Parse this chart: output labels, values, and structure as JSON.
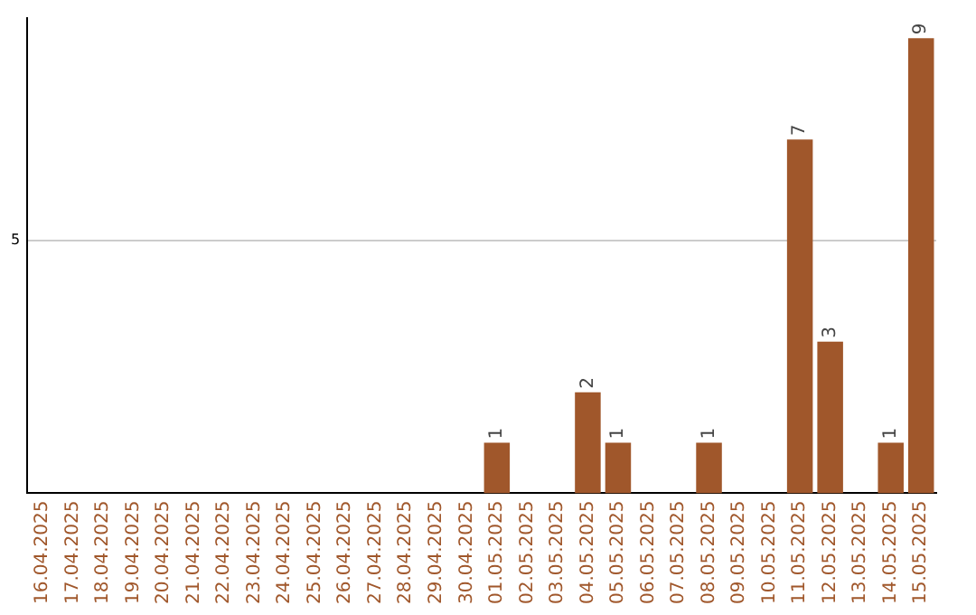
{
  "chart_data": {
    "type": "bar",
    "categories": [
      "16.04.2025",
      "17.04.2025",
      "18.04.2025",
      "19.04.2025",
      "20.04.2025",
      "21.04.2025",
      "22.04.2025",
      "23.04.2025",
      "24.04.2025",
      "25.04.2025",
      "26.04.2025",
      "27.04.2025",
      "28.04.2025",
      "29.04.2025",
      "30.04.2025",
      "01.05.2025",
      "02.05.2025",
      "03.05.2025",
      "04.05.2025",
      "05.05.2025",
      "06.05.2025",
      "07.05.2025",
      "08.05.2025",
      "09.05.2025",
      "10.05.2025",
      "11.05.2025",
      "12.05.2025",
      "13.05.2025",
      "14.05.2025",
      "15.05.2025"
    ],
    "values": [
      null,
      null,
      null,
      null,
      null,
      null,
      null,
      null,
      null,
      null,
      null,
      null,
      null,
      null,
      null,
      1,
      null,
      null,
      2,
      1,
      null,
      null,
      1,
      null,
      null,
      7,
      3,
      null,
      1,
      9
    ],
    "data_labels": true,
    "color": "#a0572b",
    "ylim": [
      0,
      9.4
    ],
    "yticks": [
      5
    ],
    "grid": "y",
    "legend": false
  }
}
